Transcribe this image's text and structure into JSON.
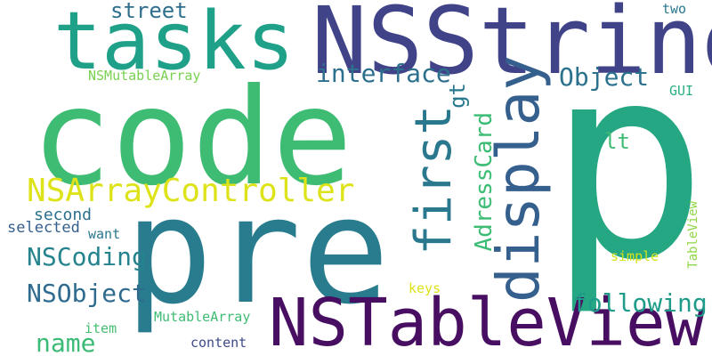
{
  "words": {
    "p": {
      "text": "p",
      "color": "#26a784"
    },
    "code": {
      "text": "code",
      "color": "#3fbc73"
    },
    "pre": {
      "text": "pre",
      "color": "#297c8d"
    },
    "nsstring": {
      "text": "NSString",
      "color": "#404387"
    },
    "tasks": {
      "text": "tasks",
      "color": "#1fa088"
    },
    "nstableview": {
      "text": "NSTableView",
      "color": "#470e61"
    },
    "display": {
      "text": "display",
      "color": "#355f8d"
    },
    "first": {
      "text": "first",
      "color": "#2a788e"
    },
    "nsarrayctl": {
      "text": "NSArrayController",
      "color": "#dde318"
    },
    "interface": {
      "text": "interface",
      "color": "#2d708e"
    },
    "object": {
      "text": "Object",
      "color": "#2b728e"
    },
    "nscoding": {
      "text": "NSCoding",
      "color": "#25838e"
    },
    "nsobject": {
      "text": "NSObject",
      "color": "#2f6b8e"
    },
    "following": {
      "text": "following",
      "color": "#1e9c89"
    },
    "name": {
      "text": "name",
      "color": "#3bbb75"
    },
    "street": {
      "text": "street",
      "color": "#2e6f8e"
    },
    "adresscard": {
      "text": "AdressCard",
      "color": "#3cbc74"
    },
    "gt": {
      "text": "gt",
      "color": "#2a788e"
    },
    "lt": {
      "text": "lt",
      "color": "#3fbc73"
    },
    "second": {
      "text": "second",
      "color": "#2d708e"
    },
    "selected": {
      "text": "selected",
      "color": "#355f8d"
    },
    "want": {
      "text": "want",
      "color": "#2a768e"
    },
    "nsmutable": {
      "text": "NSMutableArray",
      "color": "#7ad151"
    },
    "gui": {
      "text": "GUI",
      "color": "#29af7f"
    },
    "two": {
      "text": "two",
      "color": "#2a788e"
    },
    "simple": {
      "text": "simple",
      "color": "#d2e21b"
    },
    "tableview": {
      "text": "TableView",
      "color": "#8fd744"
    },
    "keys": {
      "text": "keys",
      "color": "#dde318"
    },
    "mutable": {
      "text": "MutableArray",
      "color": "#3fbc73"
    },
    "item": {
      "text": "item",
      "color": "#44bf70"
    },
    "content": {
      "text": "content",
      "color": "#3e4a89"
    }
  }
}
